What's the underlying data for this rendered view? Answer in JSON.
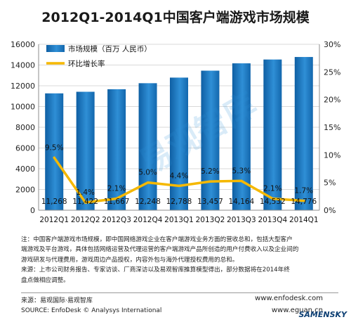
{
  "title": "2012Q1-2014Q1中国客户端游戏市场规模",
  "chart_data": {
    "type": "bar",
    "categories": [
      "2012Q1",
      "2012Q2",
      "2012Q3",
      "2012Q4",
      "2013Q1",
      "2013Q2",
      "2013Q3",
      "2013Q4",
      "2014Q1"
    ],
    "series": [
      {
        "name": "市场规模（百万 人民币）",
        "type": "bar",
        "axis": "left",
        "values": [
          11268,
          11422,
          11667,
          12248,
          12788,
          13457,
          14164,
          14532,
          14776
        ],
        "labels": [
          "11,268",
          "11,422",
          "11,667",
          "12,248",
          "12,788",
          "13,457",
          "14,164",
          "14,532",
          "14,776"
        ]
      },
      {
        "name": "环比增长率",
        "type": "line",
        "axis": "right",
        "values": [
          9.5,
          1.4,
          2.1,
          5.0,
          4.4,
          5.2,
          5.3,
          2.1,
          1.7
        ],
        "labels": [
          "9.5%",
          "1.4%",
          "2.1%",
          "5.0%",
          "4.4%",
          "5.2%",
          "5.3%",
          "2.1%",
          "1.7%"
        ]
      }
    ],
    "y_left": {
      "min": 0,
      "max": 16000,
      "ticks": [
        "0",
        "2000",
        "4000",
        "6000",
        "8000",
        "10000",
        "12000",
        "14000",
        "16000"
      ]
    },
    "y_right": {
      "min": 0,
      "max": 30,
      "ticks": [
        "0%",
        "5%",
        "10%",
        "15%",
        "20%",
        "25%",
        "30%"
      ]
    },
    "legend_position": "top-left",
    "colors": {
      "bar": "#1a73b8",
      "bar_light": "#5aa6e0",
      "line": "#f5b800"
    }
  },
  "notes": {
    "line1": "注：中国客户端游戏市场规模，即中国网络游戏企业在客户端游戏业务方面的营收总和，包括大型客户",
    "line2": "端游戏及平台游戏，具体包括网络运营及代理运营的客户端游戏产品所创造的用户付费收入以及企业间的",
    "line3": "游戏研发与代理费用，游戏周边产品授权，内容外包与海外代理授权费用的总和。",
    "line4": "来源：上市公司财务报告、专家访谈、厂商深访以及易观智库推算模型得出，部分数据将在2014年终",
    "line5": "盘点做相应调整。"
  },
  "footer": {
    "source_cn": "来源：易观国际·易观智库",
    "source_en": "SOURCE: EnfoDesk © Analysys International",
    "url1": "www.enfodesk.com",
    "url2": "www.eguan.cn"
  },
  "watermark": {
    "diagonal": "易观智库",
    "corner": "SAMENSKY"
  }
}
